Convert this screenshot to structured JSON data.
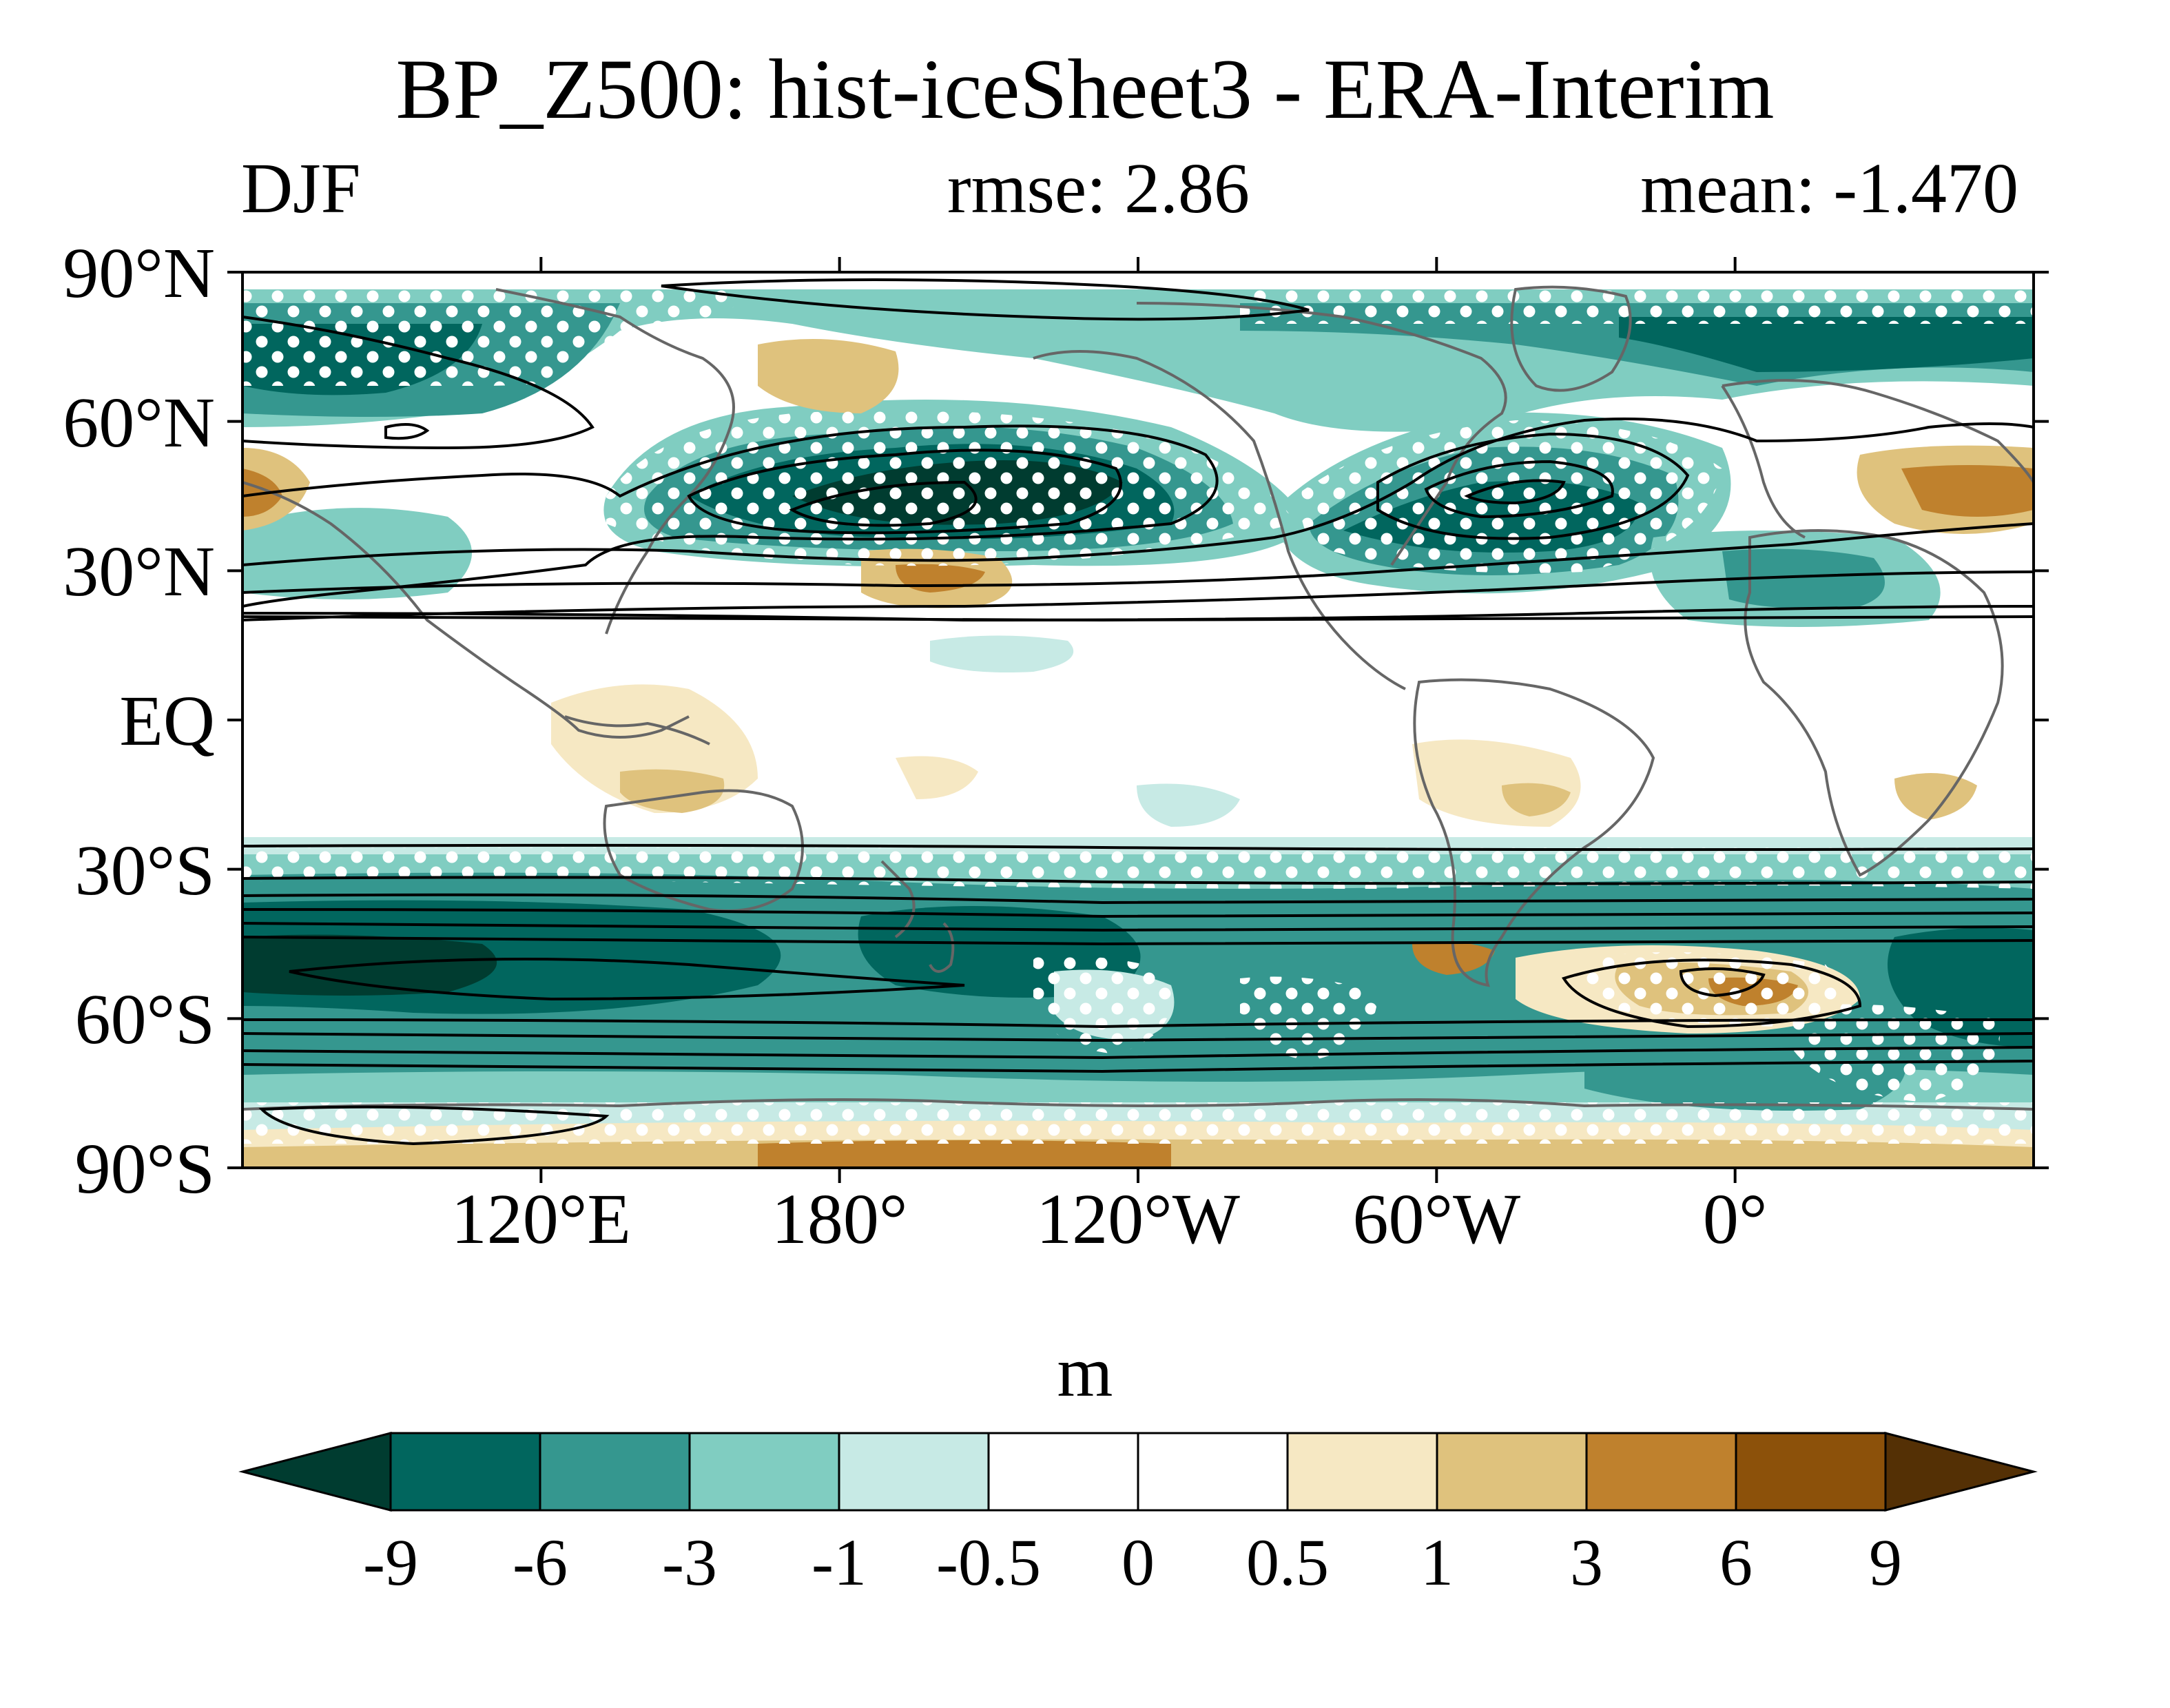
{
  "header": {
    "title": "BP_Z500: hist-iceSheet3 - ERA-Interim",
    "season": "DJF",
    "rmse": "rmse: 2.86",
    "mean": "mean: -1.470"
  },
  "map": {
    "projection": "cylindrical-equidistant",
    "lon_range": [
      60,
      420
    ],
    "lat_range": [
      -90,
      90
    ],
    "y_ticks": [
      {
        "lat": 90,
        "label": "90°N"
      },
      {
        "lat": 60,
        "label": "60°N"
      },
      {
        "lat": 30,
        "label": "30°N"
      },
      {
        "lat": 0,
        "label": "EQ"
      },
      {
        "lat": -30,
        "label": "30°S"
      },
      {
        "lat": -60,
        "label": "60°S"
      },
      {
        "lat": -90,
        "label": "90°S"
      }
    ],
    "x_ticks": [
      {
        "lon": 120,
        "label": "120°E"
      },
      {
        "lon": 180,
        "label": "180°"
      },
      {
        "lon": 240,
        "label": "120°W"
      },
      {
        "lon": 300,
        "label": "60°W"
      },
      {
        "lon": 360,
        "label": "0°"
      }
    ],
    "colors": {
      "neg_strong": "#01665e",
      "neg": "#35978f",
      "neg_light": "#80cdc1",
      "neg_faint": "#c7eae5",
      "pos_faint": "#f6e8c3",
      "pos_light": "#dfc27d",
      "pos": "#bf812d",
      "pos_strong": "#8c510a",
      "land": "#666666"
    },
    "stippling": "white dots"
  },
  "colorbar": {
    "units": "m",
    "levels": [
      "-9",
      "-6",
      "-3",
      "-1",
      "-0.5",
      "0",
      "0.5",
      "1",
      "3",
      "6",
      "9"
    ],
    "colors": [
      "#003c30",
      "#01665e",
      "#35978f",
      "#80cdc1",
      "#c7eae5",
      "#ffffff",
      "#ffffff",
      "#f6e8c3",
      "#dfc27d",
      "#bf812d",
      "#8c510a",
      "#543005"
    ]
  }
}
